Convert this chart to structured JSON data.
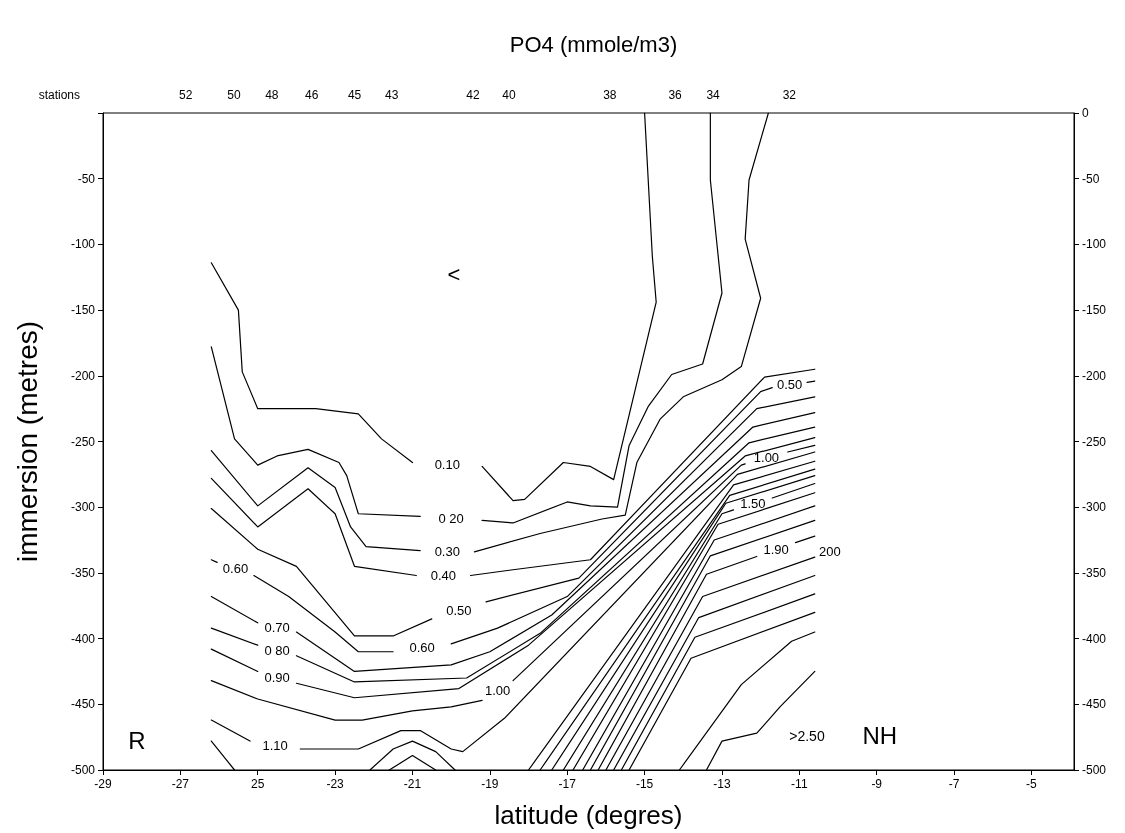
{
  "chart_data": {
    "type": "line",
    "title": "PO4 (mmole/m3)",
    "xlabel": "latitude (degres)",
    "ylabel": "immersion (metres)",
    "color": "#000000",
    "marker": "none",
    "line_style": "solid",
    "xlim": [
      -29,
      -3.9
    ],
    "xticks": [
      -29,
      -27,
      {
        "value": -25,
        "label": "25"
      },
      -23,
      -21,
      -19,
      -17,
      -15,
      -13,
      -11,
      -9,
      -7,
      -5
    ],
    "ylim": [
      -500,
      0
    ],
    "yticks": [
      {
        "value": 0,
        "label": null
      },
      -50,
      -100,
      -150,
      -200,
      -250,
      -300,
      -350,
      -400,
      -450,
      -500
    ],
    "y2lim": [
      -500,
      0
    ],
    "y2ticks": [
      0,
      -50,
      -100,
      -150,
      -200,
      -250,
      -300,
      -350,
      -400,
      -450,
      -500
    ],
    "series": [
      {
        "name": "0.10",
        "x": [
          -26.2,
          -25.5,
          -25.4,
          -25.0,
          -23.5,
          -22.4,
          -21.8,
          -21.0,
          null,
          -19.2,
          -18.4,
          -18.1,
          -17.1,
          -16.4,
          -15.8,
          -14.7,
          -14.8,
          -15.0
        ],
        "values": [
          -114,
          -150,
          -197,
          -225,
          -225,
          -229,
          -248,
          -266,
          null,
          -269,
          -295,
          -294,
          -266,
          -269,
          -279,
          -144,
          -109,
          0
        ]
      },
      {
        "name": "0 20",
        "x": [
          -26.2,
          -25.6,
          -25.0,
          -24.5,
          -23.7,
          -22.9,
          -22.7,
          -22.4,
          -20.8,
          null,
          -19.2,
          -18.4,
          -17.0,
          -16.4,
          -15.7,
          -15.4,
          -14.9,
          -14.3,
          -13.5,
          -13.0,
          -13.3,
          -13.3
        ],
        "values": [
          -178,
          -248,
          -268,
          -261,
          -256,
          -266,
          -276,
          -305,
          -307,
          null,
          -310,
          -312,
          -296,
          -299,
          -300,
          -253,
          -223,
          -199,
          -191,
          -137,
          -51,
          0
        ]
      },
      {
        "name": "0.30",
        "x": [
          -26.2,
          -25.0,
          -23.7,
          -23.0,
          -22.6,
          -22.2,
          -20.8,
          null,
          -19.4,
          -17.7,
          -16.1,
          -15.5,
          -15.2,
          -14.6,
          -14.0,
          -13.0,
          -12.5,
          -12.0,
          -12.4,
          -12.3,
          -11.8
        ],
        "values": [
          -257,
          -299,
          -270,
          -285,
          -315,
          -330,
          -333,
          null,
          -334,
          -320,
          -309,
          -306,
          -266,
          -233,
          -216,
          -203,
          -193,
          -141,
          -96,
          -51,
          0
        ]
      },
      {
        "name": "0.40",
        "x": [
          -26.2,
          -25.0,
          -23.7,
          -23.0,
          -22.5,
          -20.9,
          null,
          -19.5,
          -18.5,
          -16.4,
          -11.9,
          -10.6
        ],
        "values": [
          -278,
          -315,
          -286,
          -305,
          -345,
          -352,
          null,
          -352,
          -348,
          -340,
          -201,
          -195
        ]
      },
      {
        "name": "0.50",
        "x": [
          -26.2,
          -25.0,
          -24.0,
          -22.5,
          -21.5,
          -20.5,
          null,
          -19.1,
          -16.7,
          -12.0,
          -11.7,
          null,
          -10.8,
          -10.6
        ],
        "values": [
          -301,
          -332,
          -345,
          -398,
          -398,
          -385,
          null,
          -372,
          -354,
          -212,
          -209,
          null,
          -205,
          -204
        ]
      },
      {
        "name": "0.60",
        "x": [
          -26.2,
          -26.05,
          null,
          -25.1,
          -24.2,
          -23.0,
          -22.4,
          -21.5,
          null,
          -20.0,
          -18.8,
          -17.0,
          -12.1,
          -10.6
        ],
        "values": [
          -340,
          -342,
          null,
          -352,
          -368,
          -395,
          -410,
          -410,
          null,
          -404,
          -392,
          -368,
          -225,
          -216
        ]
      },
      {
        "name": "0.70",
        "x": [
          -26.2,
          -25.0,
          null,
          -24.0,
          -22.5,
          -20.0,
          -19.0,
          -17.4,
          -12.2,
          -10.6
        ],
        "values": [
          -368,
          -388,
          null,
          -395,
          -425,
          -420,
          -410,
          -382,
          -239,
          -228
        ]
      },
      {
        "name": "0 80",
        "x": [
          -26.2,
          -25.0,
          null,
          -24.0,
          -22.5,
          -19.6,
          -17.7,
          -12.3,
          -10.6
        ],
        "values": [
          -392,
          -405,
          null,
          -413,
          -433,
          -430,
          -396,
          -251,
          -239
        ]
      },
      {
        "name": "0.90",
        "x": [
          -26.2,
          -25.0,
          null,
          -24.0,
          -22.5,
          -19.8,
          -18.0,
          -12.4,
          -10.6
        ],
        "values": [
          -408,
          -425,
          null,
          -434,
          -445,
          -438,
          -405,
          -261,
          -247
        ]
      },
      {
        "name": "1.00",
        "x": [
          -26.2,
          -25.0,
          -23.0,
          -22.3,
          -21.0,
          -20.0,
          -19.2,
          null,
          -18.4,
          -12.5,
          -12.4,
          null,
          -11.3,
          -10.6
        ],
        "values": [
          -432,
          -446,
          -462,
          -462,
          -455,
          -452,
          -447,
          null,
          -432,
          -268,
          -267,
          null,
          -258,
          -253
        ]
      },
      {
        "name": "1.10",
        "x": [
          -26.2,
          -25.2,
          null,
          -23.9,
          -22.4,
          -21.3,
          -20.8,
          -20.0,
          -19.7,
          -18.6,
          -12.6,
          -10.6
        ],
        "values": [
          -462,
          -478,
          null,
          -484,
          -484,
          -470,
          -470,
          -484,
          -486,
          -460,
          -275,
          -258
        ]
      },
      {
        "x": [
          -26.2,
          -25.6,
          null,
          -22.1,
          -21.5,
          -21.0,
          -20.4,
          -19.9,
          null,
          -18.0,
          -12.7,
          -10.6
        ],
        "values": [
          -478,
          -500,
          null,
          -500,
          -484,
          -478,
          -486,
          -500,
          null,
          -500,
          -283,
          -265
        ]
      },
      {
        "x": [
          -21.6,
          -21.0,
          -20.4,
          null,
          -17.7,
          -12.8,
          -10.6
        ],
        "values": [
          -500,
          -489,
          -500,
          null,
          -500,
          -291,
          -271
        ]
      },
      {
        "x": [
          -17.4,
          -12.9,
          -10.6
        ],
        "values": [
          -500,
          -297,
          -276
        ]
      },
      {
        "name": "1.50",
        "x": [
          -17.1,
          -13.0,
          -12.7,
          null,
          -11.7,
          -10.6
        ],
        "values": [
          -500,
          -305,
          -302,
          null,
          -293,
          -282
        ]
      },
      {
        "x": [
          -16.85,
          -13.1,
          -10.6
        ],
        "values": [
          -500,
          -313,
          -289
        ]
      },
      {
        "x": [
          -16.6,
          -13.2,
          -10.6
        ],
        "values": [
          -500,
          -325,
          -299
        ]
      },
      {
        "x": [
          -16.4,
          -13.3,
          -10.6
        ],
        "values": [
          -500,
          -337,
          -310
        ]
      },
      {
        "name": "1.90",
        "x": [
          -16.2,
          -13.4,
          -12.1,
          null,
          -11.1,
          -10.6
        ],
        "values": [
          -500,
          -351,
          -337.5,
          null,
          -327,
          -322
        ]
      },
      {
        "name": "200",
        "x": [
          -16.0,
          -13.5,
          -10.6
        ],
        "values": [
          -500,
          -368,
          -338
        ]
      },
      {
        "x": [
          -15.8,
          -13.6,
          -10.6
        ],
        "values": [
          -500,
          -384,
          -352
        ]
      },
      {
        "x": [
          -15.6,
          -13.7,
          -10.6
        ],
        "values": [
          -500,
          -399,
          -366
        ]
      },
      {
        "x": [
          -15.4,
          -13.8,
          -10.6
        ],
        "values": [
          -500,
          -415,
          -380
        ]
      },
      {
        "x": [
          -14.1,
          -12.5,
          -11.2,
          -10.6
        ],
        "values": [
          -500,
          -435,
          -402,
          -395
        ]
      },
      {
        "x": [
          -13.4,
          -13.0,
          -12.1,
          -11.5,
          -10.6
        ],
        "values": [
          -500,
          -478,
          -472,
          -452,
          -425
        ]
      }
    ],
    "annotations": [
      "stations",
      "52",
      "50",
      "48",
      "46",
      "45",
      "43",
      "42",
      "40",
      "38",
      "36",
      "34",
      "32",
      "<",
      ">2.50",
      "R",
      "NH"
    ]
  }
}
